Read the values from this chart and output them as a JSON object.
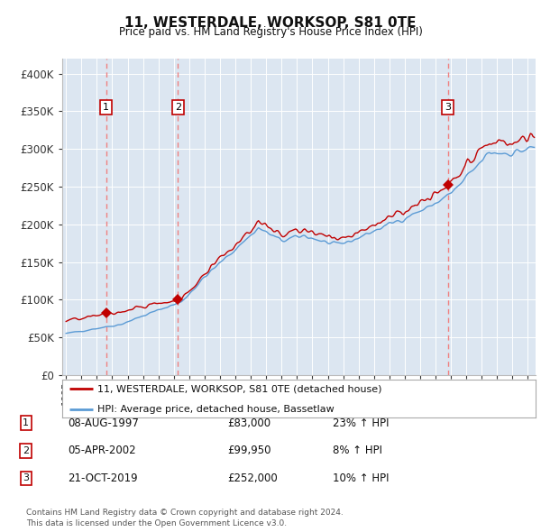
{
  "title": "11, WESTERDALE, WORKSOP, S81 0TE",
  "subtitle": "Price paid vs. HM Land Registry's House Price Index (HPI)",
  "ylim": [
    0,
    420000
  ],
  "yticks": [
    0,
    50000,
    100000,
    150000,
    200000,
    250000,
    300000,
    350000,
    400000
  ],
  "ytick_labels": [
    "£0",
    "£50K",
    "£100K",
    "£150K",
    "£200K",
    "£250K",
    "£300K",
    "£350K",
    "£400K"
  ],
  "background_color": "#ffffff",
  "plot_bg_color": "#dce6f1",
  "grid_color": "#ffffff",
  "sale_color": "#c00000",
  "hpi_color": "#5b9bd5",
  "dashed_line_color": "#f08080",
  "transaction_table": [
    {
      "num": "1",
      "date": "08-AUG-1997",
      "price": "£83,000",
      "change": "23% ↑ HPI"
    },
    {
      "num": "2",
      "date": "05-APR-2002",
      "price": "£99,950",
      "change": "8% ↑ HPI"
    },
    {
      "num": "3",
      "date": "21-OCT-2019",
      "price": "£252,000",
      "change": "10% ↑ HPI"
    }
  ],
  "legend_entries": [
    "11, WESTERDALE, WORKSOP, S81 0TE (detached house)",
    "HPI: Average price, detached house, Bassetlaw"
  ],
  "footer": "Contains HM Land Registry data © Crown copyright and database right 2024.\nThis data is licensed under the Open Government Licence v3.0.",
  "xlim_start": 1994.75,
  "xlim_end": 2025.5,
  "sale_years_dec": [
    1997.6,
    2002.26,
    2019.8
  ],
  "sale_prices": [
    83000,
    99950,
    252000
  ],
  "sale_labels": [
    "1",
    "2",
    "3"
  ]
}
